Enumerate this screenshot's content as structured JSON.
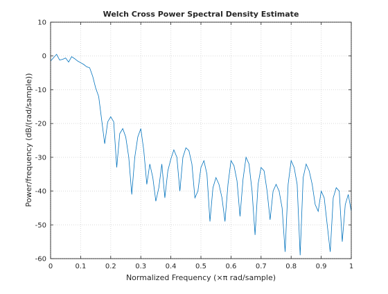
{
  "chart_data": {
    "type": "line",
    "title": "Welch Cross Power Spectral Density Estimate",
    "xlabel": "Normalized Frequency  (×π rad/sample)",
    "ylabel": "Power/frequency (dB/(rad/sample))",
    "xlim": [
      0,
      1
    ],
    "ylim": [
      -60,
      10
    ],
    "xticks": [
      0,
      0.1,
      0.2,
      0.3,
      0.4,
      0.5,
      0.6,
      0.7,
      0.8,
      0.9,
      1
    ],
    "xtick_labels": [
      "0",
      "0.1",
      "0.2",
      "0.3",
      "0.4",
      "0.5",
      "0.6",
      "0.7",
      "0.8",
      "0.9",
      "1"
    ],
    "yticks": [
      10,
      0,
      -10,
      -20,
      -30,
      -40,
      -50,
      -60
    ],
    "ytick_labels": [
      "10",
      "0",
      "-10",
      "-20",
      "-30",
      "-40",
      "-50",
      "-60"
    ],
    "grid": true,
    "colors": {
      "series": "#0072bd",
      "axes": "#262626",
      "grid": "#d9d9d9"
    },
    "series": [
      {
        "x": [
          0,
          0.01,
          0.02,
          0.03,
          0.04,
          0.05,
          0.06,
          0.07,
          0.08,
          0.09,
          0.1,
          0.11,
          0.12,
          0.13,
          0.14,
          0.15,
          0.16,
          0.17,
          0.18,
          0.19,
          0.2,
          0.21,
          0.22,
          0.23,
          0.24,
          0.25,
          0.26,
          0.27,
          0.28,
          0.29,
          0.3,
          0.31,
          0.32,
          0.33,
          0.34,
          0.35,
          0.36,
          0.37,
          0.38,
          0.39,
          0.4,
          0.41,
          0.42,
          0.43,
          0.44,
          0.45,
          0.46,
          0.47,
          0.48,
          0.49,
          0.5,
          0.51,
          0.52,
          0.53,
          0.54,
          0.55,
          0.56,
          0.57,
          0.58,
          0.59,
          0.6,
          0.61,
          0.62,
          0.63,
          0.64,
          0.65,
          0.66,
          0.67,
          0.68,
          0.69,
          0.7,
          0.71,
          0.72,
          0.73,
          0.74,
          0.75,
          0.76,
          0.77,
          0.78,
          0.79,
          0.8,
          0.81,
          0.82,
          0.83,
          0.84,
          0.85,
          0.86,
          0.87,
          0.88,
          0.89,
          0.9,
          0.91,
          0.92,
          0.93,
          0.94,
          0.95,
          0.96,
          0.97,
          0.98,
          0.99,
          1
        ],
        "y": [
          -1.5,
          -0.5,
          0.5,
          -1.2,
          -1.0,
          -0.6,
          -1.8,
          -0.2,
          -0.8,
          -1.5,
          -2.0,
          -2.5,
          -3.2,
          -3.5,
          -6.0,
          -9.5,
          -12.0,
          -19.0,
          -26.0,
          -19.5,
          -18.0,
          -19.5,
          -33.0,
          -23.0,
          -21.5,
          -24.0,
          -30.0,
          -41.0,
          -30.0,
          -24.0,
          -21.5,
          -28.0,
          -38.0,
          -32.0,
          -36.0,
          -43.0,
          -39.0,
          -32.0,
          -42.0,
          -34.0,
          -30.5,
          -27.8,
          -30.0,
          -40.0,
          -30.0,
          -27.2,
          -28.0,
          -32.0,
          -42.0,
          -40.0,
          -33.0,
          -31.0,
          -35.0,
          -49.0,
          -39.0,
          -36.0,
          -38.0,
          -42.0,
          -49.0,
          -38.0,
          -31.0,
          -32.5,
          -37.0,
          -47.5,
          -36.5,
          -30.0,
          -32.0,
          -40.0,
          -53.0,
          -38.0,
          -33.0,
          -34.0,
          -40.0,
          -48.5,
          -40.0,
          -38.0,
          -40.0,
          -45.0,
          -58.0,
          -38.0,
          -31.0,
          -33.0,
          -38.0,
          -59.0,
          -36.0,
          -32.0,
          -34.0,
          -38.0,
          -44.0,
          -46.0,
          -40.0,
          -42.0,
          -50.0,
          -58.0,
          -42.0,
          -39.0,
          -40.0,
          -55.0,
          -44.0,
          -41.0,
          -46.0
        ]
      }
    ]
  }
}
